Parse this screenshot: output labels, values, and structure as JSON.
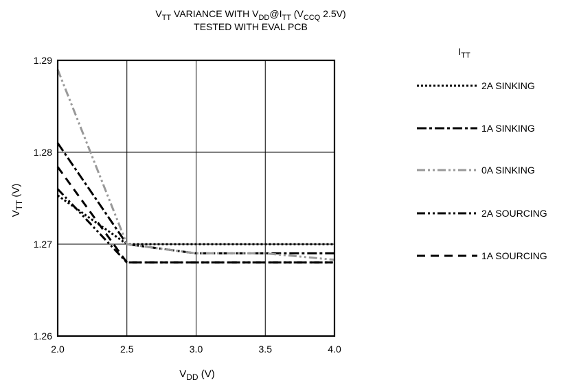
{
  "chart_data": {
    "type": "line",
    "title_line1": {
      "v": "V",
      "v_sub": "TT",
      "mid": " VARIANCE WITH V",
      "vdd_sub": "DD",
      "at": "@I",
      "i_sub": "TT",
      "open": " (V",
      "ccq_sub": "CCQ",
      "close": " 2.5V)"
    },
    "title_line2": "TESTED WITH EVAL PCB",
    "xlabel": {
      "main": "V",
      "sub": "DD",
      "unit": " (V)"
    },
    "ylabel": {
      "main": "V",
      "sub": "TT",
      "unit": " (V)"
    },
    "xlim": [
      2.0,
      4.0
    ],
    "ylim": [
      1.26,
      1.29
    ],
    "x_ticks": [
      {
        "value": 2.0,
        "label": "2.0"
      },
      {
        "value": 2.5,
        "label": "2.5"
      },
      {
        "value": 3.0,
        "label": "3.0"
      },
      {
        "value": 3.5,
        "label": "3.5"
      },
      {
        "value": 4.0,
        "label": "4.0"
      }
    ],
    "y_ticks": [
      {
        "value": 1.26,
        "label": "1.26"
      },
      {
        "value": 1.27,
        "label": "1.27"
      },
      {
        "value": 1.28,
        "label": "1.28"
      },
      {
        "value": 1.29,
        "label": "1.29"
      }
    ],
    "grid": true,
    "legend_title": {
      "main": "I",
      "sub": "TT"
    },
    "legend_position": "right",
    "series": [
      {
        "name": "2A SINKING",
        "style": "dotted",
        "color": "#000000",
        "x": [
          2.0,
          2.5,
          3.0,
          3.5,
          4.0
        ],
        "y": [
          1.2753,
          1.27,
          1.27,
          1.27,
          1.27
        ]
      },
      {
        "name": "1A SINKING",
        "style": "dash-dot",
        "color": "#000000",
        "x": [
          2.0,
          2.5,
          3.0,
          3.5,
          4.0
        ],
        "y": [
          1.281,
          1.27,
          1.269,
          1.269,
          1.269
        ]
      },
      {
        "name": "0A SINKING",
        "style": "dash-dot-dot",
        "color": "#999999",
        "x": [
          2.0,
          2.5,
          3.0,
          3.5,
          4.0
        ],
        "y": [
          1.289,
          1.27,
          1.269,
          1.269,
          1.2683
        ]
      },
      {
        "name": "2A SOURCING",
        "style": "dash-dot-dot",
        "color": "#000000",
        "x": [
          2.0,
          2.5,
          3.0,
          3.5,
          4.0
        ],
        "y": [
          1.276,
          1.268,
          1.268,
          1.268,
          1.268
        ]
      },
      {
        "name": "1A SOURCING",
        "style": "dashed",
        "color": "#000000",
        "x": [
          2.0,
          2.5,
          3.0,
          3.5,
          4.0
        ],
        "y": [
          1.2784,
          1.268,
          1.268,
          1.268,
          1.268
        ]
      }
    ]
  }
}
